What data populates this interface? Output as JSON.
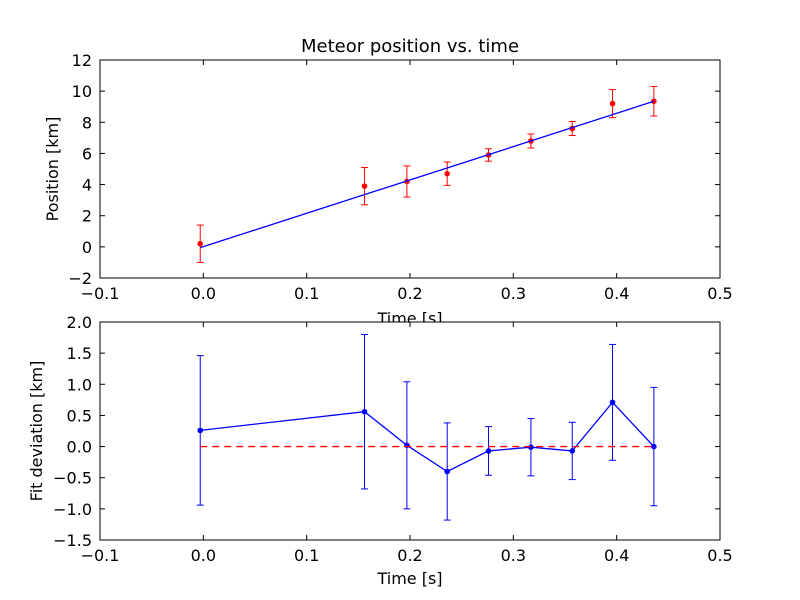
{
  "chart_data": [
    {
      "type": "scatter",
      "title": "Meteor position vs. time",
      "xlabel": "Time [s]",
      "ylabel": "Position [km]",
      "xlim": [
        -0.1,
        0.5
      ],
      "ylim": [
        -2,
        12
      ],
      "xticks": [
        -0.1,
        0.0,
        0.1,
        0.2,
        0.3,
        0.4,
        0.5
      ],
      "xtick_labels": [
        "−0.1",
        "0.0",
        "0.1",
        "0.2",
        "0.3",
        "0.4",
        "0.5"
      ],
      "yticks": [
        -2,
        0,
        2,
        4,
        6,
        8,
        10,
        12
      ],
      "ytick_labels": [
        "−2",
        "0",
        "2",
        "4",
        "6",
        "8",
        "10",
        "12"
      ],
      "grid": false,
      "series": [
        {
          "kind": "errorbar",
          "color": "#ff0000",
          "x": [
            -0.003,
            0.156,
            0.197,
            0.236,
            0.276,
            0.317,
            0.357,
            0.396,
            0.436
          ],
          "y": [
            0.2,
            3.9,
            4.2,
            4.7,
            5.9,
            6.8,
            7.6,
            9.2,
            9.35
          ],
          "yerr": [
            1.2,
            1.2,
            1.0,
            0.75,
            0.4,
            0.45,
            0.45,
            0.9,
            0.95
          ]
        },
        {
          "kind": "line",
          "color": "#0000ff",
          "x": [
            -0.003,
            0.436
          ],
          "y": [
            -0.05,
            9.35
          ]
        }
      ]
    },
    {
      "type": "scatter",
      "title": "",
      "xlabel": "Time [s]",
      "ylabel": "Fit deviation [km]",
      "xlim": [
        -0.1,
        0.5
      ],
      "ylim": [
        -1.5,
        2.0
      ],
      "xticks": [
        -0.1,
        0.0,
        0.1,
        0.2,
        0.3,
        0.4,
        0.5
      ],
      "xtick_labels": [
        "−0.1",
        "0.0",
        "0.1",
        "0.2",
        "0.3",
        "0.4",
        "0.5"
      ],
      "yticks": [
        -1.5,
        -1.0,
        -0.5,
        0.0,
        0.5,
        1.0,
        1.5,
        2.0
      ],
      "ytick_labels": [
        "−1.5",
        "−1.0",
        "−0.5",
        "0.0",
        "0.5",
        "1.0",
        "1.5",
        "2.0"
      ],
      "grid": false,
      "series": [
        {
          "kind": "errorbar-line",
          "color": "#0000ff",
          "x": [
            -0.003,
            0.156,
            0.197,
            0.236,
            0.276,
            0.317,
            0.357,
            0.396,
            0.436
          ],
          "y": [
            0.26,
            0.56,
            0.02,
            -0.4,
            -0.07,
            -0.01,
            -0.07,
            0.71,
            0.0
          ],
          "yerr": [
            1.2,
            1.24,
            1.02,
            0.78,
            0.39,
            0.46,
            0.46,
            0.93,
            0.95
          ]
        },
        {
          "kind": "hline",
          "color": "#ff0000",
          "dashed": true,
          "x": [
            -0.003,
            0.436
          ],
          "y": [
            0.0,
            0.0
          ]
        }
      ]
    }
  ]
}
